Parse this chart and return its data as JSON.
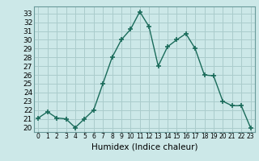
{
  "x": [
    0,
    1,
    2,
    3,
    4,
    5,
    6,
    7,
    8,
    9,
    10,
    11,
    12,
    13,
    14,
    15,
    16,
    17,
    18,
    19,
    20,
    21,
    22,
    23
  ],
  "y": [
    21.1,
    21.8,
    21.1,
    21.0,
    20.0,
    21.0,
    22.0,
    25.0,
    28.0,
    30.0,
    31.2,
    33.2,
    31.5,
    27.0,
    29.2,
    30.0,
    30.7,
    29.0,
    26.0,
    25.9,
    23.0,
    22.5,
    22.5,
    20.0
  ],
  "line_color": "#1a6b5a",
  "marker": "+",
  "marker_size": 4,
  "marker_edge_width": 1.2,
  "bg_color": "#cce8e8",
  "grid_color": "#aacccc",
  "xlabel": "Humidex (Indice chaleur)",
  "ylim": [
    19.5,
    33.8
  ],
  "xlim": [
    -0.5,
    23.5
  ],
  "yticks": [
    20,
    21,
    22,
    23,
    24,
    25,
    26,
    27,
    28,
    29,
    30,
    31,
    32,
    33
  ],
  "xticks": [
    0,
    1,
    2,
    3,
    4,
    5,
    6,
    7,
    8,
    9,
    10,
    11,
    12,
    13,
    14,
    15,
    16,
    17,
    18,
    19,
    20,
    21,
    22,
    23
  ],
  "x_tick_fontsize": 5.5,
  "y_tick_fontsize": 6.5,
  "label_fontsize": 7.5,
  "line_width": 1.0
}
